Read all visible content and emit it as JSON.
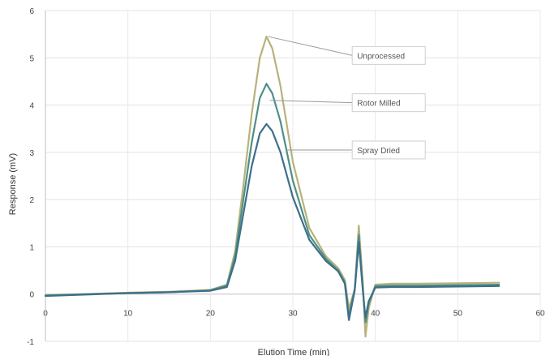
{
  "chart_data": {
    "type": "line",
    "title": "",
    "xlabel": "Elution Time (min)",
    "ylabel": "Response (mV)",
    "xlim": [
      0,
      60
    ],
    "ylim": [
      -1,
      6
    ],
    "x_ticks": [
      "0",
      "10",
      "20",
      "30",
      "40",
      "50",
      "60"
    ],
    "y_ticks": [
      "-1",
      "0",
      "1",
      "2",
      "3",
      "4",
      "5",
      "6"
    ],
    "grid": true,
    "legend_placement": "callout labels near peaks",
    "series": [
      {
        "name": "Unprocessed",
        "color": "#b8b27a",
        "x": [
          0,
          5,
          10,
          15,
          20,
          22,
          23,
          24,
          25,
          26,
          26.8,
          27.5,
          28.5,
          30,
          32,
          34,
          35.5,
          36.3,
          36.8,
          37.5,
          38,
          38.5,
          38.8,
          39.2,
          40,
          42,
          45,
          50,
          55
        ],
        "y": [
          -0.02,
          0.0,
          0.03,
          0.05,
          0.09,
          0.2,
          0.9,
          2.3,
          3.8,
          5.0,
          5.45,
          5.2,
          4.4,
          2.8,
          1.4,
          0.8,
          0.55,
          0.3,
          -0.3,
          0.1,
          1.45,
          0.2,
          -0.9,
          -0.3,
          0.2,
          0.22,
          0.22,
          0.23,
          0.24
        ]
      },
      {
        "name": "Rotor Milled",
        "color": "#4f8f87",
        "x": [
          0,
          5,
          10,
          15,
          20,
          22,
          23,
          24,
          25,
          26,
          26.8,
          27.5,
          28.5,
          30,
          32,
          34,
          35.5,
          36.3,
          36.8,
          37.5,
          38,
          38.5,
          38.8,
          39.2,
          40,
          42,
          45,
          50,
          55
        ],
        "y": [
          -0.03,
          0.0,
          0.02,
          0.04,
          0.08,
          0.18,
          0.8,
          2.0,
          3.2,
          4.15,
          4.45,
          4.25,
          3.65,
          2.4,
          1.25,
          0.75,
          0.5,
          0.25,
          -0.45,
          0.1,
          1.25,
          0.1,
          -0.6,
          -0.2,
          0.17,
          0.18,
          0.18,
          0.19,
          0.2
        ]
      },
      {
        "name": "Spray Dried",
        "color": "#3d6f8a",
        "x": [
          0,
          5,
          10,
          15,
          20,
          22,
          23,
          24,
          25,
          26,
          26.8,
          27.5,
          28.5,
          30,
          32,
          34,
          35.5,
          36.3,
          36.8,
          37.5,
          38,
          38.5,
          38.8,
          39.2,
          40,
          42,
          45,
          50,
          55
        ],
        "y": [
          -0.04,
          -0.01,
          0.02,
          0.04,
          0.07,
          0.15,
          0.7,
          1.7,
          2.7,
          3.4,
          3.6,
          3.45,
          3.0,
          2.05,
          1.15,
          0.7,
          0.48,
          0.22,
          -0.55,
          0.08,
          1.1,
          0.05,
          -0.5,
          -0.15,
          0.14,
          0.15,
          0.15,
          0.16,
          0.17
        ]
      }
    ],
    "annotations": [
      {
        "text": "Unprocessed",
        "x": 27,
        "y": 5.45,
        "label_y": 5.05,
        "label_x": 37.2
      },
      {
        "text": "Rotor Milled",
        "x": 27.2,
        "y": 4.1,
        "label_y": 4.05,
        "label_x": 37.2
      },
      {
        "text": "Spray Dried",
        "x": 29.2,
        "y": 3.05,
        "label_y": 3.05,
        "label_x": 37.2
      }
    ]
  }
}
